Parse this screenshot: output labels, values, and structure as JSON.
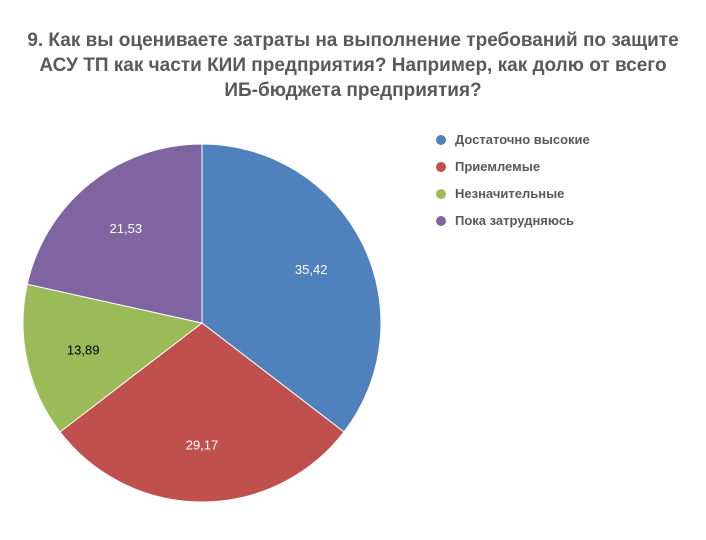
{
  "title_lines": [
    "9. Как вы оцениваете затраты на выполнение требований по защите",
    "АСУ ТП как части КИИ предприятия? Например, как долю от всего",
    "ИБ-бюджета предприятия?"
  ],
  "chart_data": {
    "type": "pie",
    "title": "9. Как вы оцениваете затраты на выполнение требований по защите АСУ ТП как части КИИ предприятия? Например, как долю от всего ИБ-бюджета предприятия?",
    "categories": [
      "Достаточно высокие",
      "Приемлемые",
      "Незначительные",
      "Пока затрудняюсь"
    ],
    "values": [
      35.42,
      29.17,
      13.89,
      21.53
    ],
    "data_labels": [
      "35,42",
      "29,17",
      "13,89",
      "21,53"
    ],
    "colors": [
      "#4f81bd",
      "#c0504d",
      "#9bbb59",
      "#8064a2"
    ],
    "start_angle": "12 o'clock",
    "direction": "clockwise",
    "legend_position": "right"
  }
}
